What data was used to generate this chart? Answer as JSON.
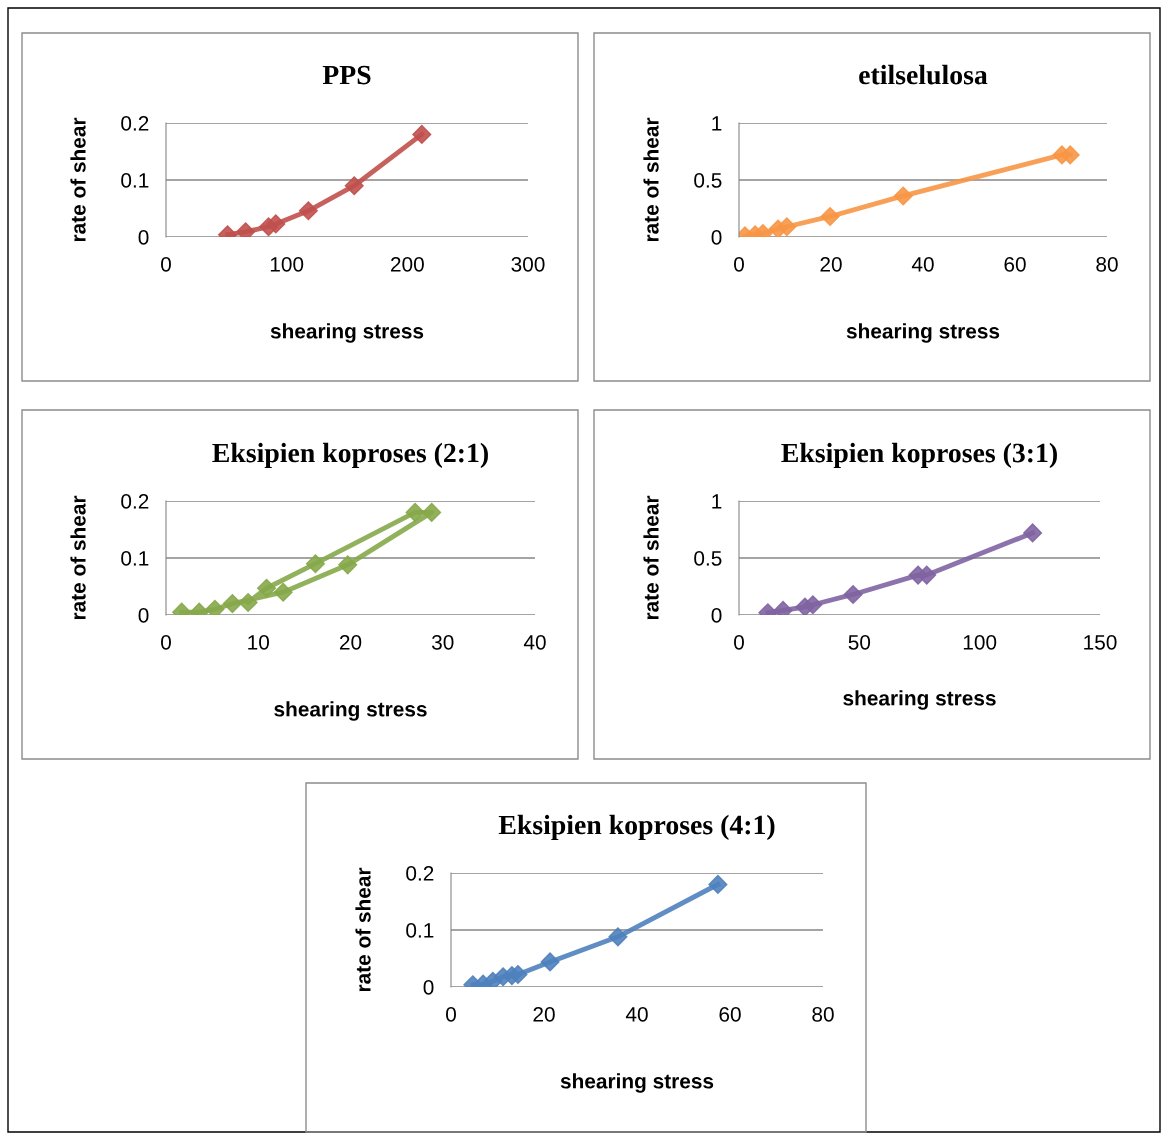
{
  "chart_data": [
    {
      "type": "line",
      "title": "PPS",
      "xlabel": "shearing stress",
      "ylabel": "rate of shear",
      "xlim": [
        0,
        300
      ],
      "xticks": [
        0,
        100,
        200,
        300
      ],
      "ylim": [
        0,
        0.2
      ],
      "yticks": [
        0,
        0.1,
        0.2
      ],
      "grid": "y",
      "marker": "diamond",
      "line_style": "solid",
      "series": [
        {
          "color": "#c0504d",
          "x": [
            51,
            66,
            85,
            91,
            118,
            156,
            212
          ],
          "values": [
            0.004,
            0.009,
            0.018,
            0.023,
            0.046,
            0.09,
            0.18
          ]
        }
      ]
    },
    {
      "type": "line",
      "title": "etilselulosa",
      "xlabel": "shearing stress",
      "ylabel": "rate of shear",
      "xlim": [
        0,
        80
      ],
      "xticks": [
        0,
        20,
        40,
        60,
        80
      ],
      "ylim": [
        0,
        1
      ],
      "yticks": [
        0,
        0.5,
        1
      ],
      "grid": "y",
      "marker": "diamond",
      "line_style": "solid",
      "series": [
        {
          "color": "#f79646",
          "x": [
            1.3,
            3.5,
            5.2,
            8.5,
            10.4,
            19.8,
            35.7,
            70.2,
            72
          ],
          "values": [
            0.01,
            0.02,
            0.03,
            0.07,
            0.09,
            0.18,
            0.36,
            0.72,
            0.72
          ]
        }
      ]
    },
    {
      "type": "line",
      "title": "Eksipien koproses (2:1)",
      "xlabel": "shearing stress",
      "ylabel": "rate of shear",
      "xlim": [
        0,
        40
      ],
      "xticks": [
        0,
        10,
        20,
        30,
        40
      ],
      "ylim": [
        0,
        0.2
      ],
      "yticks": [
        0,
        0.1,
        0.2
      ],
      "grid": "y",
      "marker": "diamond",
      "line_style": "solid",
      "series": [
        {
          "color": "#86a84a",
          "x": [
            1.7,
            3.6,
            5.3,
            7.2,
            12.7,
            19.7,
            28.8,
            27,
            16.2,
            10.9,
            8.9
          ],
          "values": [
            0.005,
            0.005,
            0.01,
            0.02,
            0.04,
            0.088,
            0.18,
            0.18,
            0.09,
            0.047,
            0.022
          ]
        }
      ]
    },
    {
      "type": "line",
      "title": "Eksipien koproses (3:1)",
      "xlabel": "shearing stress",
      "ylabel": "rate of shear",
      "xlim": [
        0,
        150
      ],
      "xticks": [
        0,
        50,
        100,
        150
      ],
      "ylim": [
        0,
        1
      ],
      "yticks": [
        0,
        0.5,
        1
      ],
      "grid": "y",
      "marker": "diamond",
      "line_style": "solid",
      "series": [
        {
          "color": "#8064a2",
          "x": [
            12,
            18.3,
            27.4,
            30.7,
            47.4,
            74.4,
            78,
            122
          ],
          "values": [
            0.02,
            0.04,
            0.07,
            0.09,
            0.18,
            0.35,
            0.35,
            0.72
          ]
        }
      ]
    },
    {
      "type": "line",
      "title": "Eksipien koproses (4:1)",
      "xlabel": "shearing stress",
      "ylabel": "rate of shear",
      "xlim": [
        0,
        80
      ],
      "xticks": [
        0,
        20,
        40,
        60,
        80
      ],
      "ylim": [
        0,
        0.2
      ],
      "yticks": [
        0,
        0.1,
        0.2
      ],
      "grid": "y",
      "marker": "diamond",
      "line_style": "solid",
      "series": [
        {
          "color": "#4f81bd",
          "x": [
            4.7,
            6.9,
            9,
            11.2,
            13.1,
            14.4,
            21.3,
            35.9,
            57.4
          ],
          "values": [
            0.004,
            0.005,
            0.01,
            0.018,
            0.02,
            0.022,
            0.044,
            0.088,
            0.18
          ]
        }
      ]
    }
  ]
}
